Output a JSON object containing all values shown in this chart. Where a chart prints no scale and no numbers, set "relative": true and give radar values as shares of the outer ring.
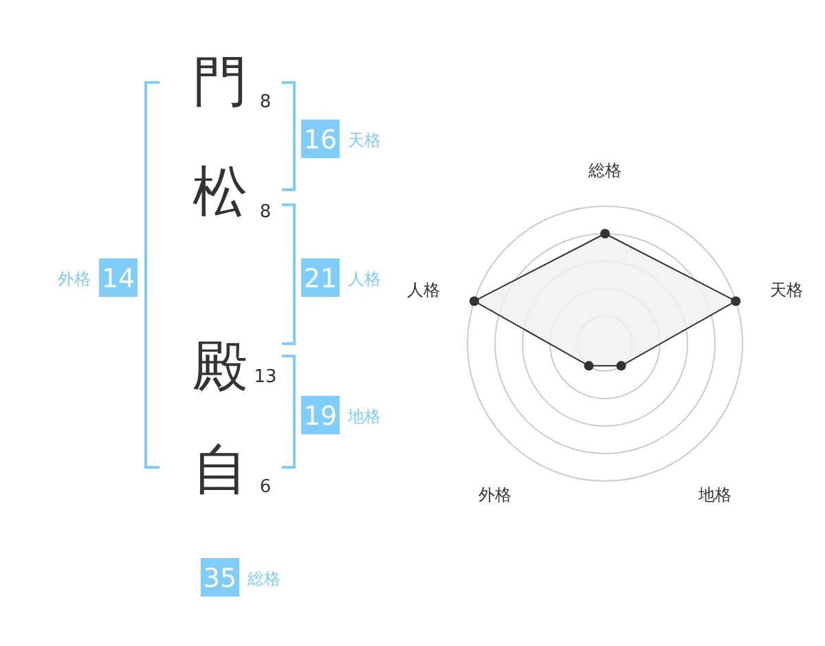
{
  "chart_data": [
    {
      "type": "other",
      "categories": [
        "門",
        "松",
        "殿",
        "自"
      ],
      "values": [
        8,
        8,
        13,
        6
      ],
      "data_labels": true,
      "color": "#7fcdfb",
      "annotations": [
        "16",
        "天格",
        "21",
        "人格",
        "19",
        "地格",
        "14",
        "外格",
        "35",
        "総格"
      ]
    },
    {
      "type": "radar",
      "categories": [
        "総格",
        "天格",
        "地格",
        "外格",
        "人格"
      ],
      "relative": true,
      "grid": true,
      "marker": "circle",
      "series": [
        {
          "color": "#333333",
          "values": [
            0.8,
            1,
            0.2,
            0.2,
            1
          ]
        }
      ]
    }
  ]
}
